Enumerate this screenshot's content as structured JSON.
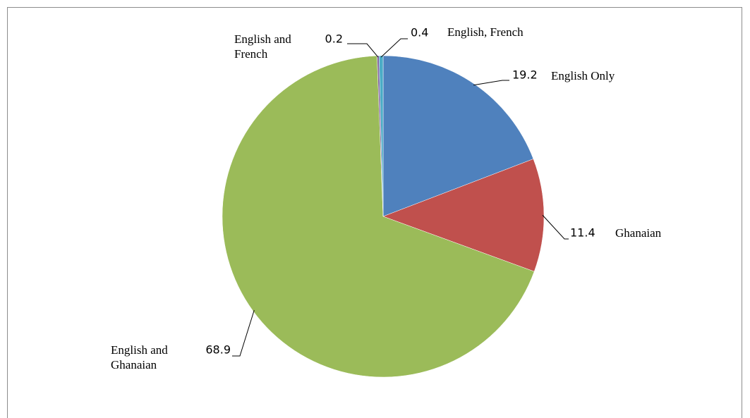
{
  "chart_data": {
    "type": "pie",
    "categories": [
      "English Only",
      "Ghanaian",
      "English and Ghanaian",
      "English and French",
      "English, French"
    ],
    "values": [
      19.2,
      11.4,
      68.9,
      0.2,
      0.4
    ],
    "colors": [
      "#4f81bd",
      "#c0504d",
      "#9bbb59",
      "#8064a2",
      "#4bacc6"
    ]
  }
}
